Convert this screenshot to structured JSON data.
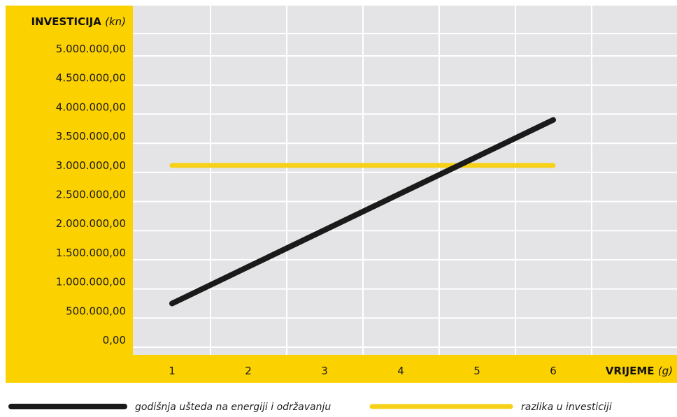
{
  "chart_data": {
    "type": "line",
    "title": "",
    "ylabel": {
      "main": "INVESTICIJA",
      "unit": "(kn)"
    },
    "xlabel": {
      "main": "VRIJEME",
      "unit": "(g)"
    },
    "x": [
      1,
      2,
      3,
      4,
      5,
      6
    ],
    "x_tick_labels": [
      "1",
      "2",
      "3",
      "4",
      "5",
      "6"
    ],
    "ylim": [
      0,
      5000000
    ],
    "y_ticks": [
      0,
      500000,
      1000000,
      1500000,
      2000000,
      2500000,
      3000000,
      3500000,
      4000000,
      4500000,
      5000000
    ],
    "y_tick_labels": [
      "0,00",
      "500.000,00",
      "1.000.000,00",
      "1.500.000,00",
      "2.000.000,00",
      "2.500.000,00",
      "3.000.000,00",
      "3.500.000,00",
      "4.000.000,00",
      "4.500.000,00",
      "5.000.000,00"
    ],
    "grid": true,
    "legend_position": "bottom",
    "series": [
      {
        "name": "godišnja ušteda na energiji i održavanju",
        "color": "#1a1a1a",
        "values": [
          630000,
          1260000,
          1890000,
          2520000,
          3150000,
          3780000
        ]
      },
      {
        "name": "razlika u investiciji",
        "color": "#f7d117",
        "values": [
          3000000,
          3000000,
          3000000,
          3000000,
          3000000,
          3000000
        ]
      }
    ],
    "colors": {
      "axis_band": "#fcd100",
      "plot_bg": "#e4e4e6",
      "grid": "#ffffff"
    }
  }
}
